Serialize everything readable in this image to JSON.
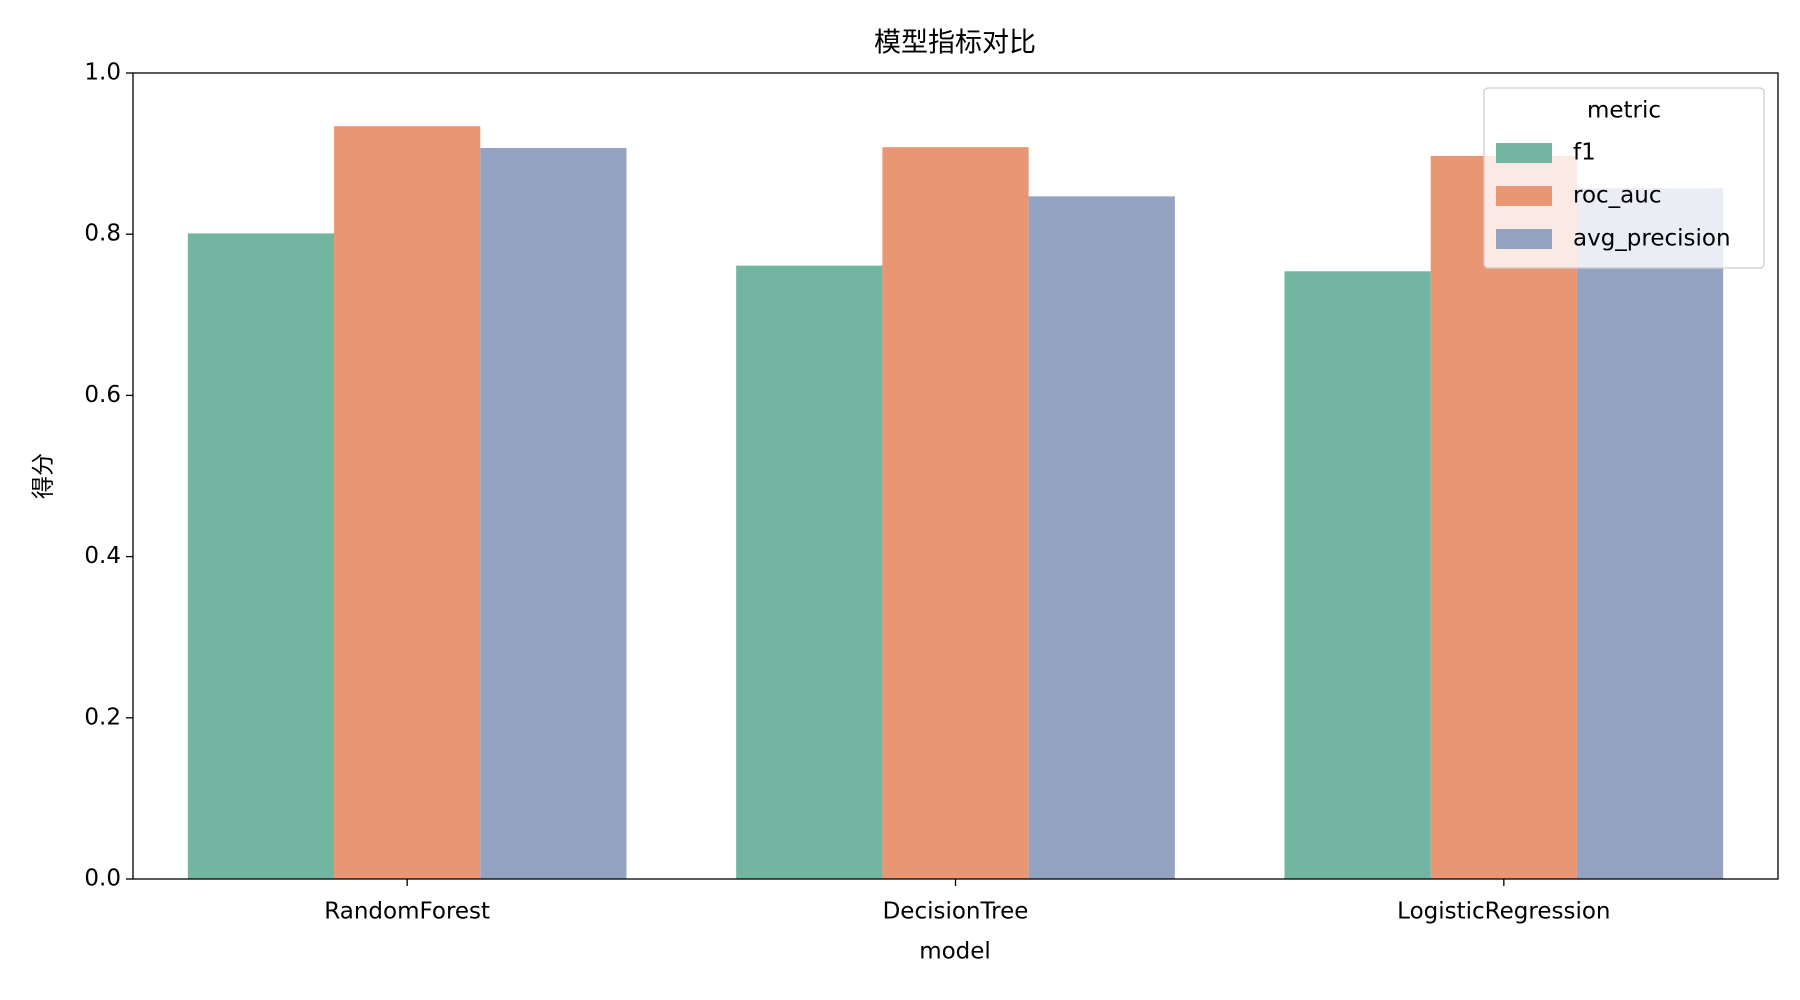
{
  "chart_data": {
    "type": "bar",
    "title": "模型指标对比",
    "x_label": "model",
    "y_label": "得分",
    "categories": [
      "RandomForest",
      "DecisionTree",
      "LogisticRegression"
    ],
    "series": [
      {
        "name": "f1",
        "color": "#72b6a1",
        "values": [
          0.801,
          0.761,
          0.754
        ]
      },
      {
        "name": "roc_auc",
        "color": "#e99675",
        "values": [
          0.934,
          0.908,
          0.897
        ]
      },
      {
        "name": "avg_precision",
        "color": "#95a3c3",
        "values": [
          0.907,
          0.847,
          0.857
        ]
      }
    ],
    "legend_title": "metric",
    "legend_position": "upper right",
    "ylim": [
      0,
      1
    ],
    "yticks": [
      {
        "value": 0,
        "label": "0.0"
      },
      0.2,
      0.4,
      0.6,
      0.8,
      {
        "value": 1,
        "label": "1.0"
      }
    ],
    "grid": false
  }
}
